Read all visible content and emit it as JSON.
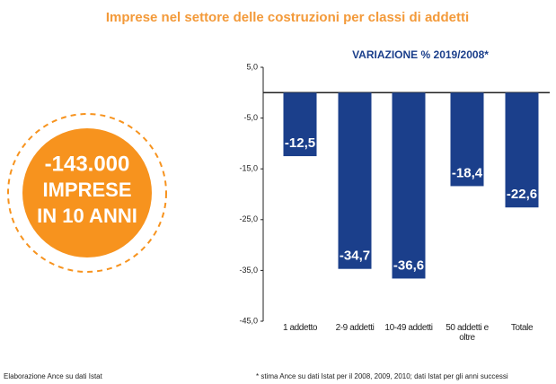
{
  "chart_data": {
    "type": "bar",
    "title": "Imprese nel settore delle costruzioni per classi di addetti",
    "subtitle": "VARIAZIONE % 2019/2008*",
    "categories": [
      "1 addetto",
      "2-9 addetti",
      "10-49 addetti",
      "50 addetti e oltre",
      "Totale"
    ],
    "values": [
      -12.5,
      -34.7,
      -36.6,
      -18.4,
      -22.6
    ],
    "value_labels": [
      "-12,5",
      "-34,7",
      "-36,6",
      "-18,4",
      "-22,6"
    ],
    "color": "#1b3f8b",
    "ylim": [
      -45,
      5
    ],
    "yticks": [
      {
        "value": 5,
        "label": "5,0"
      },
      {
        "value": -5,
        "label": "-5,0"
      },
      {
        "value": -15,
        "label": "-15,0"
      },
      {
        "value": -25,
        "label": "-25,0"
      },
      {
        "value": -35,
        "label": "-35,0"
      },
      {
        "value": -45,
        "label": "-45,0"
      }
    ],
    "annotations": [
      "-143.000",
      "IMPRESE",
      "IN 10 ANNI"
    ],
    "source": "Elaborazione Ance su dati Istat",
    "note": "* stima Ance su dati Istat per il 2008, 2009, 2010; dati Istat per gli anni successi"
  }
}
